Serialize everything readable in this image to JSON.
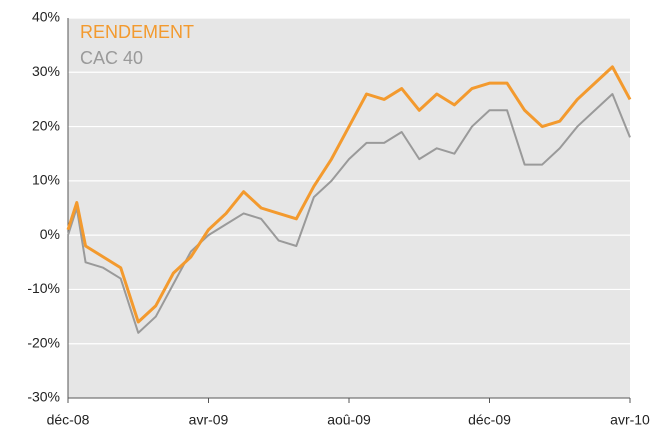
{
  "chart_data": {
    "type": "line",
    "x": [
      0,
      0.25,
      0.5,
      1,
      1.5,
      2,
      2.5,
      3,
      3.5,
      4,
      4.5,
      5,
      5.5,
      6,
      6.5,
      7,
      7.5,
      8,
      8.5,
      9,
      9.5,
      10,
      10.5,
      11,
      11.5,
      12,
      12.5,
      13,
      13.5,
      14,
      14.5,
      15,
      15.5,
      16
    ],
    "series": [
      {
        "name": "RENDEMENT",
        "color": "#f39a2e",
        "values": [
          1,
          6,
          -2,
          -4,
          -6,
          -16,
          -13,
          -7,
          -4,
          1,
          4,
          8,
          5,
          4,
          3,
          9,
          14,
          20,
          26,
          25,
          27,
          23,
          26,
          24,
          27,
          28,
          28,
          23,
          20,
          21,
          25,
          28,
          31,
          25
        ]
      },
      {
        "name": "CAC 40",
        "color": "#9a9a9a",
        "values": [
          0,
          5,
          -5,
          -6,
          -8,
          -18,
          -15,
          -9,
          -3,
          0,
          2,
          4,
          3,
          -1,
          -2,
          7,
          10,
          14,
          17,
          17,
          19,
          14,
          16,
          15,
          20,
          23,
          23,
          13,
          13,
          16,
          20,
          23,
          26,
          18
        ]
      }
    ],
    "xlim": [
      0,
      16
    ],
    "xticks": [
      {
        "value": 0,
        "label": "déc-08"
      },
      {
        "value": 4,
        "label": "avr-09"
      },
      {
        "value": 8,
        "label": "aoû-09"
      },
      {
        "value": 12,
        "label": "déc-09"
      },
      {
        "value": 16,
        "label": "avr-10"
      }
    ],
    "ylim": [
      -30,
      40
    ],
    "yticks": [
      {
        "value": -30,
        "label": "-30%"
      },
      {
        "value": -20,
        "label": "-20%"
      },
      {
        "value": -10,
        "label": "-10%"
      },
      {
        "value": 0,
        "label": "0%"
      },
      {
        "value": 10,
        "label": "10%"
      },
      {
        "value": 20,
        "label": "20%"
      },
      {
        "value": 30,
        "label": "30%"
      },
      {
        "value": 40,
        "label": "40%"
      }
    ],
    "grid": true,
    "legend": "top-left"
  }
}
